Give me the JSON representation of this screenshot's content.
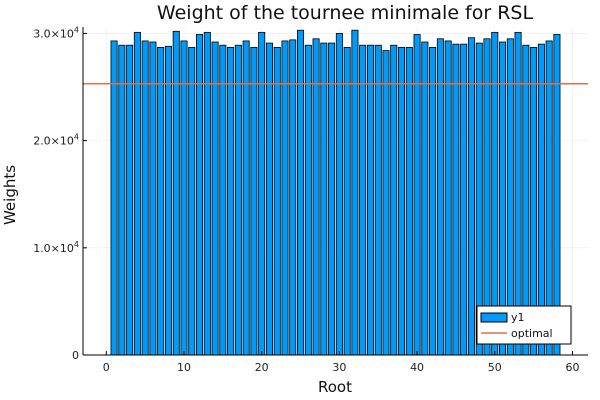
{
  "chart_data": {
    "type": "bar",
    "title": "Weight of the tournee minimale for RSL",
    "xlabel": "Root",
    "ylabel": "Weights",
    "xlim": [
      -3,
      62
    ],
    "ylim": [
      0,
      30600
    ],
    "x_ticks": [
      0,
      10,
      20,
      30,
      40,
      50,
      60
    ],
    "x_tick_labels": [
      "0",
      "10",
      "20",
      "30",
      "40",
      "50",
      "60"
    ],
    "y_ticks": [
      0,
      10000,
      20000,
      30000
    ],
    "y_tick_labels": [
      {
        "base": "0",
        "exp": ""
      },
      {
        "base": "1.0×10",
        "exp": "4"
      },
      {
        "base": "2.0×10",
        "exp": "4"
      },
      {
        "base": "3.0×10",
        "exp": "4"
      }
    ],
    "grid": true,
    "legend_position": "bottom-right",
    "colors": {
      "bars": "#009AFA",
      "optimal": "#E26F46",
      "bar_edge": "#000000"
    },
    "x": [
      1,
      2,
      3,
      4,
      5,
      6,
      7,
      8,
      9,
      10,
      11,
      12,
      13,
      14,
      15,
      16,
      17,
      18,
      19,
      20,
      21,
      22,
      23,
      24,
      25,
      26,
      27,
      28,
      29,
      30,
      31,
      32,
      33,
      34,
      35,
      36,
      37,
      38,
      39,
      40,
      41,
      42,
      43,
      44,
      45,
      46,
      47,
      48,
      49,
      50,
      51,
      52,
      53,
      54,
      55,
      56,
      57,
      58
    ],
    "series": [
      {
        "name": "y1",
        "type": "bar",
        "values": [
          29300,
          28900,
          28900,
          30100,
          29300,
          29200,
          28700,
          28800,
          30200,
          29300,
          28700,
          29900,
          30100,
          29200,
          28900,
          28700,
          28900,
          29300,
          28700,
          30100,
          29100,
          28700,
          29300,
          29400,
          30300,
          28900,
          29500,
          29100,
          29100,
          30000,
          28700,
          30300,
          28900,
          28900,
          28900,
          28400,
          28900,
          28700,
          28700,
          29900,
          29200,
          28700,
          29500,
          29300,
          29000,
          29000,
          29600,
          29100,
          29500,
          30100,
          29200,
          29500,
          30100,
          28900,
          28700,
          29000,
          29300,
          29900
        ]
      },
      {
        "name": "optimal",
        "type": "hline",
        "value": 25300
      }
    ]
  }
}
